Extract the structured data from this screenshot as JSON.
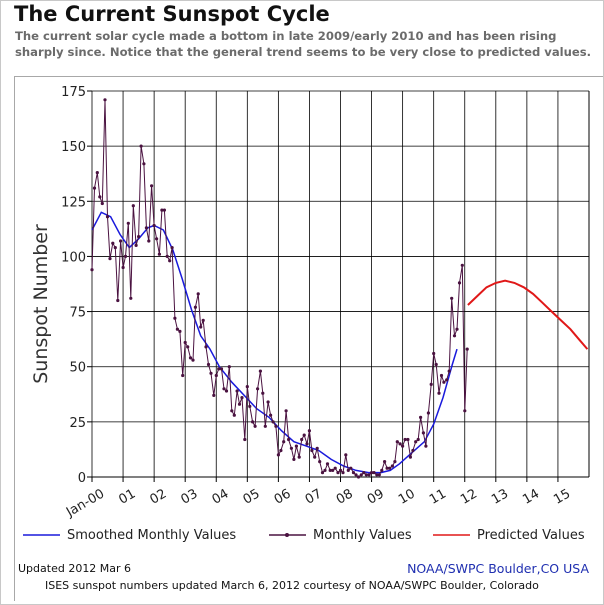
{
  "header": {
    "title": "The Current Sunspot Cycle",
    "subtitle": "The current solar cycle made a bottom in late 2009/early 2010 and has been rising sharply since. Notice that the general trend seems to be very close to predicted values."
  },
  "footer": {
    "updated": "Updated 2012 Mar  6",
    "credit": "NOAA/SWPC Boulder,CO USA",
    "source_note": "ISES sunspot numbers updated March 6, 2012 courtesy of NOAA/SWPC Boulder, Colorado"
  },
  "colors": {
    "smoothed": "#1a1adc",
    "monthly": "#4a1240",
    "predicted": "#e01818",
    "grid": "#000000"
  },
  "chart_data": {
    "type": "line",
    "title": "",
    "xlabel": "",
    "ylabel": "Sunspot Number",
    "xlim": [
      2000.0,
      2016.0
    ],
    "ylim": [
      0,
      175
    ],
    "x_tick_values": [
      2000,
      2001,
      2002,
      2003,
      2004,
      2005,
      2006,
      2007,
      2008,
      2009,
      2010,
      2011,
      2012,
      2013,
      2014,
      2015
    ],
    "x_tick_labels": [
      "Jan-00",
      "01",
      "02",
      "03",
      "04",
      "05",
      "06",
      "07",
      "08",
      "09",
      "10",
      "11",
      "12",
      "13",
      "14",
      "15"
    ],
    "y_ticks": [
      0,
      25,
      50,
      75,
      100,
      125,
      150,
      175
    ],
    "grid": true,
    "legend_position": "bottom",
    "series": [
      {
        "name": "Smoothed Monthly Values",
        "x": [
          2000.0,
          2000.3,
          2000.6,
          2000.9,
          2001.2,
          2001.5,
          2001.8,
          2002.0,
          2002.3,
          2002.6,
          2002.9,
          2003.2,
          2003.5,
          2003.8,
          2004.1,
          2004.5,
          2004.9,
          2005.3,
          2005.7,
          2006.1,
          2006.5,
          2006.9,
          2007.3,
          2007.7,
          2008.1,
          2008.5,
          2008.9,
          2009.3,
          2009.6,
          2009.9,
          2010.3,
          2010.7,
          2011.0,
          2011.3,
          2011.6,
          2011.75
        ],
        "values": [
          112,
          120,
          118,
          110,
          104,
          108,
          113,
          114,
          112,
          103,
          90,
          76,
          64,
          58,
          50,
          43,
          37,
          31,
          27,
          21,
          16,
          14,
          12,
          8,
          5,
          3,
          2,
          2,
          3,
          6,
          11,
          16,
          24,
          36,
          51,
          58
        ]
      },
      {
        "name": "Monthly Values",
        "x": [
          2000.0,
          2000.08,
          2000.17,
          2000.25,
          2000.33,
          2000.42,
          2000.5,
          2000.58,
          2000.67,
          2000.75,
          2000.83,
          2000.92,
          2001.0,
          2001.08,
          2001.17,
          2001.25,
          2001.33,
          2001.42,
          2001.5,
          2001.58,
          2001.67,
          2001.75,
          2001.83,
          2001.92,
          2002.0,
          2002.08,
          2002.17,
          2002.25,
          2002.33,
          2002.42,
          2002.5,
          2002.58,
          2002.67,
          2002.75,
          2002.83,
          2002.92,
          2003.0,
          2003.08,
          2003.17,
          2003.25,
          2003.33,
          2003.42,
          2003.5,
          2003.58,
          2003.67,
          2003.75,
          2003.83,
          2003.92,
          2004.0,
          2004.08,
          2004.17,
          2004.25,
          2004.33,
          2004.42,
          2004.5,
          2004.58,
          2004.67,
          2004.75,
          2004.83,
          2004.92,
          2005.0,
          2005.08,
          2005.17,
          2005.25,
          2005.33,
          2005.42,
          2005.5,
          2005.58,
          2005.67,
          2005.75,
          2005.83,
          2005.92,
          2006.0,
          2006.08,
          2006.17,
          2006.25,
          2006.33,
          2006.42,
          2006.5,
          2006.58,
          2006.67,
          2006.75,
          2006.83,
          2006.92,
          2007.0,
          2007.08,
          2007.17,
          2007.25,
          2007.33,
          2007.42,
          2007.5,
          2007.58,
          2007.67,
          2007.75,
          2007.83,
          2007.92,
          2008.0,
          2008.08,
          2008.17,
          2008.25,
          2008.33,
          2008.42,
          2008.5,
          2008.58,
          2008.67,
          2008.75,
          2008.83,
          2008.92,
          2009.0,
          2009.08,
          2009.17,
          2009.25,
          2009.33,
          2009.42,
          2009.5,
          2009.58,
          2009.67,
          2009.75,
          2009.83,
          2009.92,
          2010.0,
          2010.08,
          2010.17,
          2010.25,
          2010.33,
          2010.42,
          2010.5,
          2010.58,
          2010.67,
          2010.75,
          2010.83,
          2010.92,
          2011.0,
          2011.08,
          2011.17,
          2011.25,
          2011.33,
          2011.42,
          2011.5,
          2011.58,
          2011.67,
          2011.75,
          2011.83,
          2011.92,
          2012.0,
          2012.08
        ],
        "values": [
          94,
          131,
          138,
          127,
          124,
          171,
          118,
          99,
          106,
          104,
          80,
          107,
          95,
          100,
          115,
          81,
          123,
          105,
          109,
          150,
          142,
          113,
          107,
          132,
          114,
          108,
          101,
          121,
          121,
          100,
          98,
          104,
          72,
          67,
          66,
          46,
          61,
          59,
          54,
          53,
          77,
          83,
          68,
          71,
          59,
          51,
          47,
          37,
          46,
          49,
          49,
          40,
          39,
          50,
          30,
          28,
          39,
          33,
          36,
          17,
          41,
          32,
          25,
          23,
          40,
          48,
          38,
          23,
          34,
          28,
          25,
          23,
          10,
          12,
          16,
          30,
          17,
          13,
          8,
          14,
          9,
          17,
          19,
          15,
          21,
          12,
          9,
          13,
          7,
          2,
          3,
          6,
          3,
          3,
          4,
          2,
          3,
          2,
          10,
          3,
          4,
          2,
          1,
          0,
          1,
          2,
          1,
          1,
          2,
          2,
          1,
          1,
          3,
          7,
          4,
          4,
          5,
          7,
          16,
          15,
          14,
          17,
          17,
          9,
          12,
          16,
          17,
          27,
          20,
          14,
          29,
          42,
          56,
          51,
          38,
          46,
          43,
          44,
          48,
          81,
          64,
          67,
          88,
          96,
          30,
          58
        ]
      },
      {
        "name": "Predicted Values",
        "x": [
          2012.1,
          2012.4,
          2012.7,
          2013.0,
          2013.3,
          2013.6,
          2013.9,
          2014.2,
          2014.5,
          2014.8,
          2015.1,
          2015.4,
          2015.7,
          2015.95
        ],
        "values": [
          78,
          82,
          86,
          88,
          89,
          88,
          86,
          83,
          79,
          75,
          71,
          67,
          62,
          58
        ]
      }
    ]
  }
}
